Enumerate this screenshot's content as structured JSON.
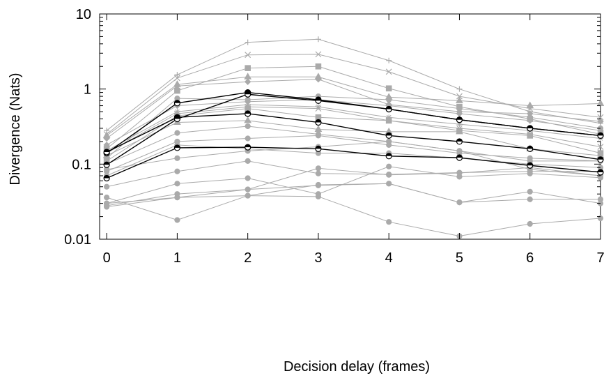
{
  "chart_data": {
    "type": "line",
    "title": "",
    "xlabel": "Decision delay (frames)",
    "ylabel": "Divergence (Nats)",
    "x": [
      0,
      1,
      2,
      3,
      4,
      5,
      6,
      7
    ],
    "xlim": [
      -0.1,
      7.0
    ],
    "ylim": [
      0.01,
      10
    ],
    "yscale": "log",
    "x_ticks": [
      "0",
      "1",
      "2",
      "3",
      "4",
      "5",
      "6",
      "7"
    ],
    "y_ticks": [
      {
        "value": 10,
        "label": "10"
      },
      {
        "value": 1,
        "label": "1"
      },
      {
        "value": 0.1,
        "label": "0.1"
      },
      {
        "value": 0.01,
        "label": "0.01"
      }
    ],
    "grid": false,
    "legend": "none",
    "colors": {
      "highlight": "#000000",
      "background": "#aaaaaa"
    },
    "series": [
      {
        "values": [
          0.28,
          1.55,
          4.2,
          4.6,
          2.4,
          1.0,
          0.5,
          0.35
        ],
        "marker": "plus",
        "highlight": false
      },
      {
        "values": [
          0.25,
          1.4,
          2.85,
          2.9,
          1.7,
          0.8,
          0.55,
          0.42
        ],
        "marker": "cross",
        "highlight": false
      },
      {
        "values": [
          0.24,
          1.15,
          1.45,
          1.45,
          0.78,
          0.7,
          0.6,
          0.64
        ],
        "marker": "triangle",
        "highlight": false
      },
      {
        "values": [
          0.16,
          0.95,
          1.9,
          2.0,
          1.02,
          0.58,
          0.4,
          0.25
        ],
        "marker": "square",
        "highlight": false
      },
      {
        "values": [
          0.22,
          1.1,
          1.25,
          1.35,
          0.62,
          0.5,
          0.47,
          0.37
        ],
        "marker": "diamond",
        "highlight": false
      },
      {
        "values": [
          0.12,
          0.75,
          0.72,
          0.8,
          0.72,
          0.55,
          0.42,
          0.3
        ],
        "marker": "circle",
        "highlight": false
      },
      {
        "values": [
          0.18,
          0.6,
          0.68,
          0.72,
          0.6,
          0.47,
          0.38,
          0.28
        ],
        "marker": "diamond",
        "highlight": false
      },
      {
        "values": [
          0.15,
          0.5,
          0.62,
          0.58,
          0.42,
          0.34,
          0.28,
          0.22
        ],
        "marker": "star",
        "highlight": false
      },
      {
        "values": [
          0.14,
          0.47,
          0.58,
          0.55,
          0.38,
          0.3,
          0.25,
          0.17
        ],
        "marker": "cross",
        "highlight": false
      },
      {
        "values": [
          0.11,
          0.44,
          0.55,
          0.42,
          0.38,
          0.28,
          0.24,
          0.14
        ],
        "marker": "square",
        "highlight": false
      },
      {
        "values": [
          0.13,
          0.36,
          0.38,
          0.29,
          0.27,
          0.27,
          0.16,
          0.13
        ],
        "marker": "triangle",
        "highlight": false
      },
      {
        "values": [
          0.1,
          0.26,
          0.32,
          0.25,
          0.2,
          0.15,
          0.11,
          0.11
        ],
        "marker": "circle",
        "highlight": false
      },
      {
        "values": [
          0.08,
          0.2,
          0.22,
          0.24,
          0.18,
          0.14,
          0.12,
          0.11
        ],
        "marker": "circle",
        "highlight": false
      },
      {
        "values": [
          0.07,
          0.18,
          0.16,
          0.14,
          0.14,
          0.12,
          0.1,
          0.09
        ],
        "marker": "circle",
        "highlight": false
      },
      {
        "values": [
          0.085,
          0.12,
          0.15,
          0.17,
          0.2,
          0.15,
          0.085,
          0.07
        ],
        "marker": "circle",
        "highlight": false
      },
      {
        "values": [
          0.05,
          0.08,
          0.11,
          0.075,
          0.073,
          0.077,
          0.08,
          0.08
        ],
        "marker": "circle",
        "highlight": false
      },
      {
        "values": [
          0.03,
          0.055,
          0.065,
          0.04,
          0.093,
          0.068,
          0.075,
          0.066
        ],
        "marker": "circle",
        "highlight": false
      },
      {
        "values": [
          0.028,
          0.04,
          0.046,
          0.088,
          0.072,
          0.076,
          0.09,
          0.07
        ],
        "marker": "circle",
        "highlight": false
      },
      {
        "values": [
          0.03,
          0.036,
          0.038,
          0.053,
          0.055,
          0.031,
          0.034,
          0.034
        ],
        "marker": "circle",
        "highlight": false
      },
      {
        "values": [
          0.036,
          0.018,
          0.038,
          0.037,
          0.017,
          0.011,
          0.016,
          0.019
        ],
        "marker": "circle",
        "highlight": false
      },
      {
        "values": [
          0.027,
          0.036,
          0.046,
          0.052,
          0.055,
          0.031,
          0.043,
          0.03
        ],
        "marker": "circle",
        "highlight": false
      },
      {
        "values": [
          0.14,
          0.65,
          0.9,
          0.72,
          0.54,
          0.39,
          0.3,
          0.24
        ],
        "marker": "half-circle",
        "highlight": true
      },
      {
        "values": [
          0.145,
          0.42,
          0.47,
          0.36,
          0.24,
          0.2,
          0.16,
          0.115
        ],
        "marker": "half-circle",
        "highlight": true
      },
      {
        "values": [
          0.098,
          0.4,
          0.85,
          0.7,
          0.54,
          0.39,
          0.3,
          0.24
        ],
        "marker": "half-circle",
        "highlight": true
      },
      {
        "values": [
          0.065,
          0.165,
          0.168,
          0.16,
          0.128,
          0.122,
          0.096,
          0.078
        ],
        "marker": "half-circle",
        "highlight": true
      }
    ]
  }
}
